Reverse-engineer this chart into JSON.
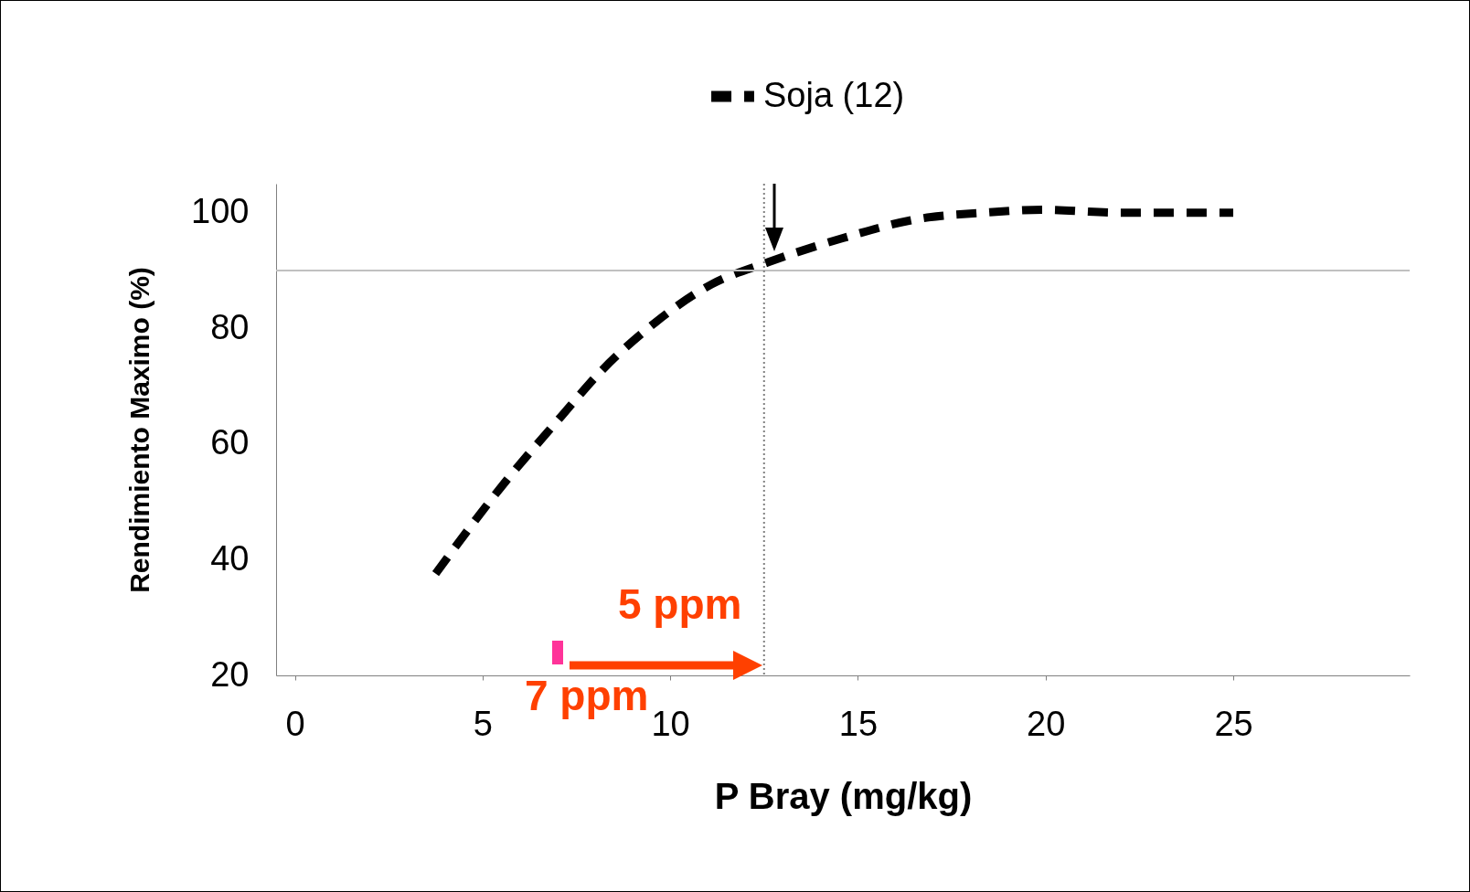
{
  "chart_data": {
    "type": "line",
    "xlabel": "P Bray (mg/kg)",
    "ylabel": "Rendimiento Maximo (%)",
    "xlim": [
      -0.5,
      29.7
    ],
    "xticks": [
      0,
      5,
      10,
      15,
      20,
      25
    ],
    "ylim": [
      20,
      105
    ],
    "yticks": [
      20,
      40,
      60,
      80,
      100
    ],
    "grid": false,
    "legend": "top",
    "line_style": "dashed",
    "marker": "none",
    "series": [
      {
        "name": "Soja (12)",
        "color": "#000000",
        "x": [
          3.75,
          5.6,
          7.1,
          8.1,
          9.6,
          11.1,
          12.6,
          14.6,
          16.6,
          18.4,
          19.9,
          22,
          25
        ],
        "values": [
          37.6,
          53.4,
          64.8,
          72.2,
          81,
          87.6,
          91.4,
          95.6,
          98.9,
          100,
          100.5,
          100,
          100
        ]
      }
    ],
    "ref_lines": [
      {
        "axis": "y",
        "value": 90,
        "color": "#c0c0c0"
      },
      {
        "axis": "x",
        "value": 12.5,
        "color": "#808080",
        "line_style": "dotted"
      }
    ],
    "annotations": [
      "5 ppm",
      "7 ppm"
    ]
  }
}
